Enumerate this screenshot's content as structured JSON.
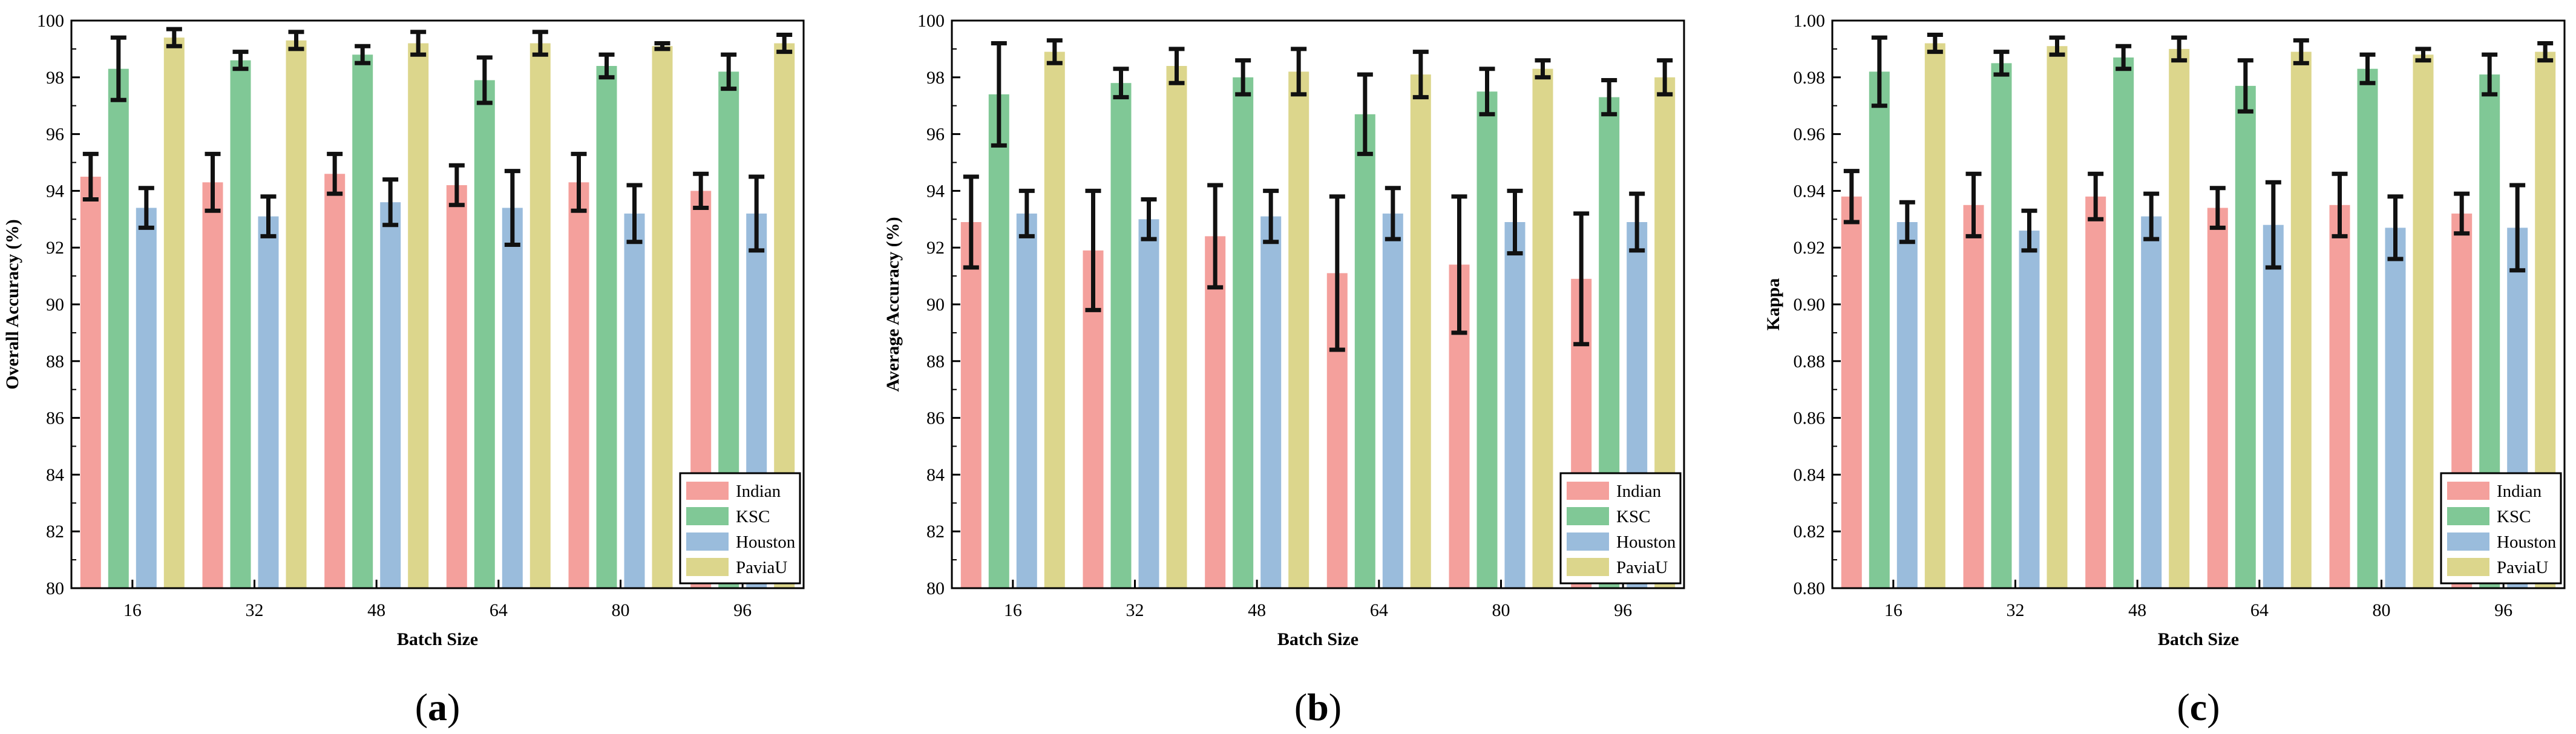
{
  "colors": {
    "Indian": "#F4A09C",
    "KSC": "#80C896",
    "Houston": "#9ABCDC",
    "PaviaU": "#DCD68C"
  },
  "chart_data": [
    {
      "type": "bar",
      "panel_label": "(a)",
      "title": "",
      "xlabel": "Batch Size",
      "ylabel": "Overall Accuracy (%)",
      "ylim": [
        80,
        100
      ],
      "yticks": [
        "80",
        "82",
        "84",
        "86",
        "88",
        "90",
        "92",
        "94",
        "96",
        "98",
        "100"
      ],
      "categories": [
        "16",
        "32",
        "48",
        "64",
        "80",
        "96"
      ],
      "legend_position": "bottom-right",
      "series": [
        {
          "name": "Indian",
          "values": [
            94.5,
            94.3,
            94.6,
            94.2,
            94.3,
            94.0
          ],
          "errors": [
            0.8,
            1.0,
            0.7,
            0.7,
            1.0,
            0.6
          ]
        },
        {
          "name": "KSC",
          "values": [
            98.3,
            98.6,
            98.8,
            97.9,
            98.4,
            98.2
          ],
          "errors": [
            1.1,
            0.3,
            0.3,
            0.8,
            0.4,
            0.6
          ]
        },
        {
          "name": "Houston",
          "values": [
            93.4,
            93.1,
            93.6,
            93.4,
            93.2,
            93.2
          ],
          "errors": [
            0.7,
            0.7,
            0.8,
            1.3,
            1.0,
            1.3
          ]
        },
        {
          "name": "PaviaU",
          "values": [
            99.4,
            99.3,
            99.2,
            99.2,
            99.1,
            99.2
          ],
          "errors": [
            0.3,
            0.3,
            0.4,
            0.4,
            0.1,
            0.3
          ]
        }
      ]
    },
    {
      "type": "bar",
      "panel_label": "(b)",
      "title": "",
      "xlabel": "Batch Size",
      "ylabel": "Average Accuracy (%)",
      "ylim": [
        80,
        100
      ],
      "yticks": [
        "80",
        "82",
        "84",
        "86",
        "88",
        "90",
        "92",
        "94",
        "96",
        "98",
        "100"
      ],
      "categories": [
        "16",
        "32",
        "48",
        "64",
        "80",
        "96"
      ],
      "legend_position": "bottom-right",
      "series": [
        {
          "name": "Indian",
          "values": [
            92.9,
            91.9,
            92.4,
            91.1,
            91.4,
            90.9
          ],
          "errors": [
            1.6,
            2.1,
            1.8,
            2.7,
            2.4,
            2.3
          ]
        },
        {
          "name": "KSC",
          "values": [
            97.4,
            97.8,
            98.0,
            96.7,
            97.5,
            97.3
          ],
          "errors": [
            1.8,
            0.5,
            0.6,
            1.4,
            0.8,
            0.6
          ]
        },
        {
          "name": "Houston",
          "values": [
            93.2,
            93.0,
            93.1,
            93.2,
            92.9,
            92.9
          ],
          "errors": [
            0.8,
            0.7,
            0.9,
            0.9,
            1.1,
            1.0
          ]
        },
        {
          "name": "PaviaU",
          "values": [
            98.9,
            98.4,
            98.2,
            98.1,
            98.3,
            98.0
          ],
          "errors": [
            0.4,
            0.6,
            0.8,
            0.8,
            0.3,
            0.6
          ]
        }
      ]
    },
    {
      "type": "bar",
      "panel_label": "(c)",
      "title": "",
      "xlabel": "Batch Size",
      "ylabel": "Kappa",
      "ylim": [
        0.8,
        1.0
      ],
      "yticks": [
        "0.80",
        "0.82",
        "0.84",
        "0.86",
        "0.88",
        "0.90",
        "0.92",
        "0.94",
        "0.96",
        "0.98",
        "1.00"
      ],
      "categories": [
        "16",
        "32",
        "48",
        "64",
        "80",
        "96"
      ],
      "legend_position": "bottom-right",
      "series": [
        {
          "name": "Indian",
          "values": [
            0.938,
            0.935,
            0.938,
            0.934,
            0.935,
            0.932
          ],
          "errors": [
            0.009,
            0.011,
            0.008,
            0.007,
            0.011,
            0.007
          ]
        },
        {
          "name": "KSC",
          "values": [
            0.982,
            0.985,
            0.987,
            0.977,
            0.983,
            0.981
          ],
          "errors": [
            0.012,
            0.004,
            0.004,
            0.009,
            0.005,
            0.007
          ]
        },
        {
          "name": "Houston",
          "values": [
            0.929,
            0.926,
            0.931,
            0.928,
            0.927,
            0.927
          ],
          "errors": [
            0.007,
            0.007,
            0.008,
            0.015,
            0.011,
            0.015
          ]
        },
        {
          "name": "PaviaU",
          "values": [
            0.992,
            0.991,
            0.99,
            0.989,
            0.988,
            0.989
          ],
          "errors": [
            0.003,
            0.003,
            0.004,
            0.004,
            0.002,
            0.003
          ]
        }
      ]
    }
  ]
}
